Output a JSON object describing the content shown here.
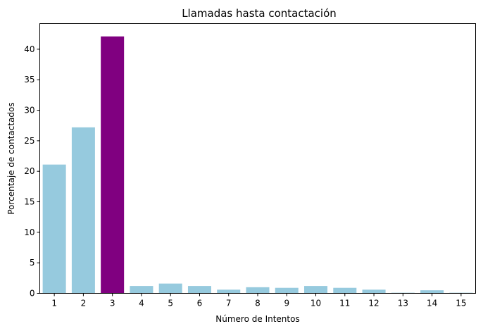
{
  "chart_data": {
    "type": "bar",
    "title": "Llamadas hasta contactación",
    "xlabel": "Número de Intentos",
    "ylabel": "Porcentaje de contactados",
    "categories": [
      "1",
      "2",
      "3",
      "4",
      "5",
      "6",
      "7",
      "8",
      "9",
      "10",
      "11",
      "12",
      "13",
      "14",
      "15"
    ],
    "values": [
      21.1,
      27.2,
      42.1,
      1.2,
      1.6,
      1.2,
      0.6,
      1.0,
      0.9,
      1.2,
      0.9,
      0.6,
      0.1,
      0.5,
      0.1
    ],
    "yticks": [
      0,
      5,
      10,
      15,
      20,
      25,
      30,
      35,
      40
    ],
    "ylim": [
      0,
      44.2
    ],
    "grid": false,
    "colors": {
      "default": "#96cade",
      "highlight": "#800080"
    },
    "highlight_index": 2
  }
}
